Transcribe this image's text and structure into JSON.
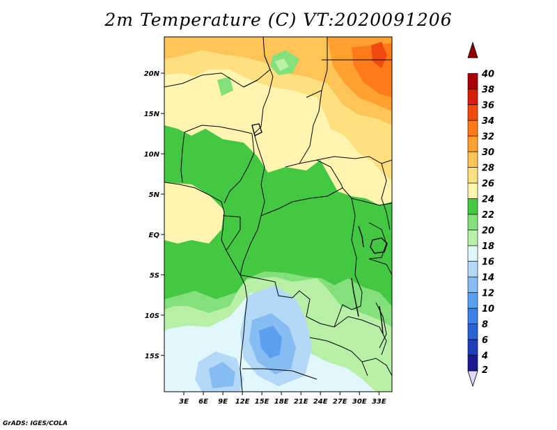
{
  "title": "2m Temperature (C) VT:2020091206",
  "credit": "GrADS: IGES/COLA",
  "map": {
    "lon_range": [
      0,
      35
    ],
    "lat_range": [
      -19.5,
      24.5
    ],
    "lat_ticks": [
      {
        "value": 20,
        "label": "20N"
      },
      {
        "value": 15,
        "label": "15N"
      },
      {
        "value": 10,
        "label": "10N"
      },
      {
        "value": 5,
        "label": "5N"
      },
      {
        "value": 0,
        "label": "EQ"
      },
      {
        "value": -5,
        "label": "5S"
      },
      {
        "value": -10,
        "label": "10S"
      },
      {
        "value": -15,
        "label": "15S"
      }
    ],
    "lon_ticks": [
      {
        "value": 3,
        "label": "3E"
      },
      {
        "value": 6,
        "label": "6E"
      },
      {
        "value": 9,
        "label": "9E"
      },
      {
        "value": 12,
        "label": "12E"
      },
      {
        "value": 15,
        "label": "15E"
      },
      {
        "value": 18,
        "label": "18E"
      },
      {
        "value": 21,
        "label": "21E"
      },
      {
        "value": 24,
        "label": "24E"
      },
      {
        "value": 27,
        "label": "27E"
      },
      {
        "value": 30,
        "label": "30E"
      },
      {
        "value": 33,
        "label": "33E"
      }
    ]
  },
  "colorbar": {
    "levels": [
      {
        "label": "2",
        "color": "#e0d8f8"
      },
      {
        "label": "4",
        "color": "#1a1a8c"
      },
      {
        "label": "6",
        "color": "#1e3fb8"
      },
      {
        "label": "8",
        "color": "#2a62d6"
      },
      {
        "label": "10",
        "color": "#3c82e6"
      },
      {
        "label": "12",
        "color": "#5aa0ee"
      },
      {
        "label": "14",
        "color": "#86bcf2"
      },
      {
        "label": "16",
        "color": "#b4d8f8"
      },
      {
        "label": "18",
        "color": "#e2f7fb"
      },
      {
        "label": "20",
        "color": "#b8f0a8"
      },
      {
        "label": "22",
        "color": "#84e07a"
      },
      {
        "label": "24",
        "color": "#44c844"
      },
      {
        "label": "26",
        "color": "#fff4b0"
      },
      {
        "label": "28",
        "color": "#ffe080"
      },
      {
        "label": "30",
        "color": "#ffc458"
      },
      {
        "label": "32",
        "color": "#ffa030"
      },
      {
        "label": "34",
        "color": "#ff7a1a"
      },
      {
        "label": "36",
        "color": "#f04a10"
      },
      {
        "label": "38",
        "color": "#d42008"
      },
      {
        "label": "40",
        "color": "#a80008"
      }
    ],
    "top_color": "#8c0000"
  }
}
